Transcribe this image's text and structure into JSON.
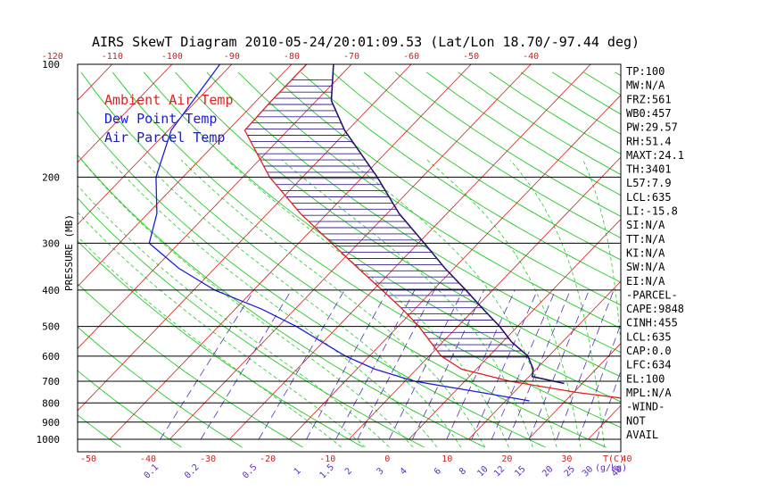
{
  "chart_data": {
    "type": "line",
    "title": "AIRS SkewT Diagram 2010-05-24/20:01:09.53 (Lat/Lon 18.70/-97.44 deg)",
    "ylabel": "PRESSURE (MB)",
    "xlabel_bottom_unit": "T(C)",
    "mixing_ratio_unit": "(g/kg)",
    "pressure_ticks": [
      "100",
      "200",
      "300",
      "400",
      "500",
      "600",
      "700",
      "800",
      "900",
      "1000"
    ],
    "bottom_temp_ticks": [
      "-50",
      "-40",
      "-30",
      "-20",
      "-10",
      "0",
      "10",
      "20",
      "30",
      "40"
    ],
    "top_temp_ticks": [
      "-120",
      "-110",
      "-100",
      "-90",
      "-80",
      "-70",
      "-60",
      "-50",
      "-40"
    ],
    "mixing_ratio_labels": [
      "0.1",
      "0.2",
      "0.5",
      "1",
      "1.5",
      "2",
      "3",
      "4",
      "6",
      "8",
      "10",
      "12",
      "15",
      "20",
      "25",
      "30",
      "40"
    ],
    "legend": [
      {
        "name": "Ambient Air Temp",
        "color": "#e02020"
      },
      {
        "name": "Dew Point Temp",
        "color": "#1c1ce0"
      },
      {
        "name": "Air Parcel Temp",
        "color": "#2020b0"
      }
    ],
    "colors": {
      "isotherm": "#cc2020",
      "dry_adiabat": "#22cc22",
      "moist_adiabat": "#22cc22",
      "mixing_ratio": "#5030c0",
      "isobar": "#000000",
      "parcel": "#2a1470",
      "cape_hatch": "#3a2090",
      "tick_labels": "#cc2020",
      "mixing_labels": "#6030c0"
    },
    "series": [
      {
        "name": "Ambient Air Temp",
        "points": [
          {
            "p": 100,
            "t": -77.5
          },
          {
            "p": 125,
            "t": -77.5
          },
          {
            "p": 150,
            "t": -77.2
          },
          {
            "p": 200,
            "t": -65.5
          },
          {
            "p": 250,
            "t": -54.5
          },
          {
            "p": 300,
            "t": -44.5
          },
          {
            "p": 350,
            "t": -36.0
          },
          {
            "p": 400,
            "t": -28.5
          },
          {
            "p": 450,
            "t": -22.0
          },
          {
            "p": 500,
            "t": -16.5
          },
          {
            "p": 600,
            "t": -8.0
          },
          {
            "p": 650,
            "t": -2.5
          },
          {
            "p": 700,
            "t": 7.5
          },
          {
            "p": 750,
            "t": 20.5
          },
          {
            "p": 780,
            "t": 30.0
          }
        ]
      },
      {
        "name": "Dew Point Temp",
        "points": [
          {
            "p": 100,
            "t": -92.0
          },
          {
            "p": 150,
            "t": -89.5
          },
          {
            "p": 200,
            "t": -84.5
          },
          {
            "p": 250,
            "t": -78.5
          },
          {
            "p": 300,
            "t": -75.0
          },
          {
            "p": 350,
            "t": -66.0
          },
          {
            "p": 400,
            "t": -56.5
          },
          {
            "p": 450,
            "t": -45.5
          },
          {
            "p": 500,
            "t": -37.0
          },
          {
            "p": 600,
            "t": -24.0
          },
          {
            "p": 650,
            "t": -17.0
          },
          {
            "p": 700,
            "t": -8.5
          },
          {
            "p": 750,
            "t": 4.5
          },
          {
            "p": 790,
            "t": 14.0
          }
        ]
      },
      {
        "name": "Air Parcel Temp",
        "points": [
          {
            "p": 100,
            "t": -73.0
          },
          {
            "p": 125,
            "t": -67.5
          },
          {
            "p": 150,
            "t": -60.5
          },
          {
            "p": 200,
            "t": -47.5
          },
          {
            "p": 250,
            "t": -38.0
          },
          {
            "p": 300,
            "t": -29.0
          },
          {
            "p": 350,
            "t": -21.5
          },
          {
            "p": 400,
            "t": -14.5
          },
          {
            "p": 450,
            "t": -8.5
          },
          {
            "p": 500,
            "t": -3.0
          },
          {
            "p": 550,
            "t": 1.5
          },
          {
            "p": 600,
            "t": 6.5
          },
          {
            "p": 650,
            "t": 9.5
          },
          {
            "p": 680,
            "t": 10.5
          },
          {
            "p": 710,
            "t": 17.0
          }
        ]
      }
    ]
  },
  "indices": [
    "TP:100",
    "MW:N/A",
    "FRZ:561",
    "WB0:457",
    "PW:29.57",
    "RH:51.4",
    "MAXT:24.1",
    "TH:3401",
    "L57:7.9",
    "LCL:635",
    "LI:-15.8",
    "SI:N/A",
    "TT:N/A",
    "KI:N/A",
    "SW:N/A",
    "EI:N/A",
    "-PARCEL-",
    "CAPE:9848",
    "CINH:455",
    "LCL:635",
    "CAP:0.0",
    "LFC:634",
    "EL:100",
    "MPL:N/A",
    "-WIND-",
    "NOT",
    "AVAIL"
  ]
}
